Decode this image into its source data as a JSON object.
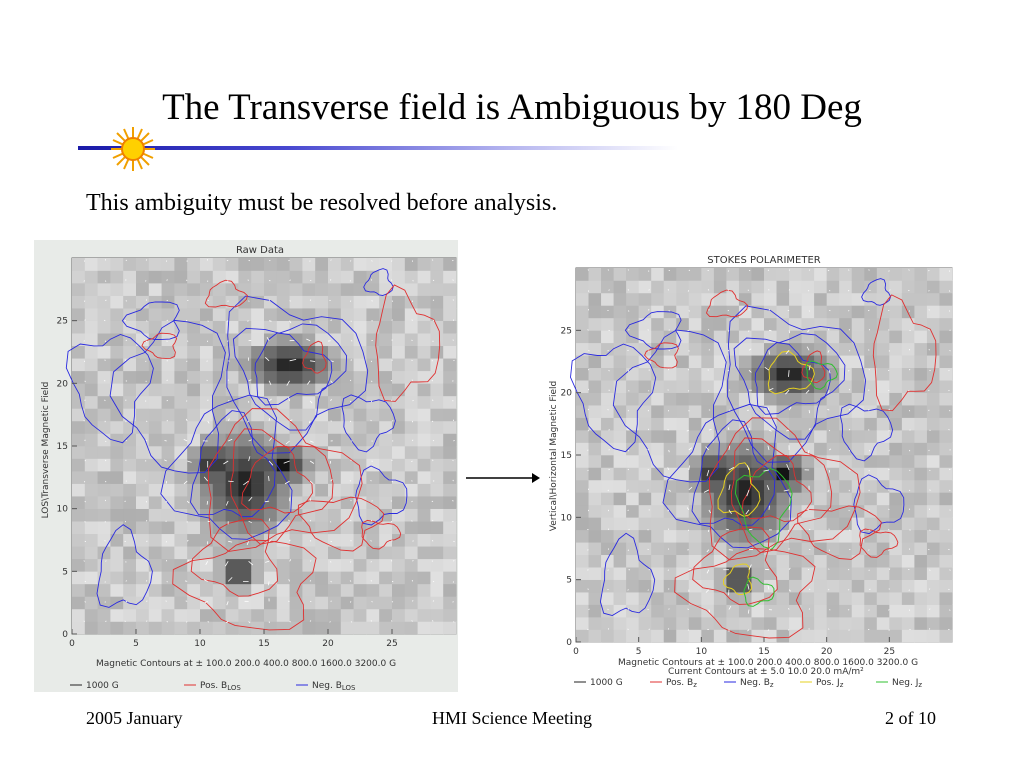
{
  "slide": {
    "title": "The Transverse field is Ambiguous by 180 Deg",
    "subtitle": "This ambiguity must be resolved before analysis.",
    "footer_left": "2005 January",
    "footer_center": "HMI Science Meeting",
    "footer_right": "2 of 10",
    "decoration_icon": "sun-icon"
  },
  "left_plot": {
    "title": "Raw Data",
    "ylabel": "LOS\\Transverse Magnetic Field",
    "yticks": [
      "0",
      "5",
      "10",
      "15",
      "20",
      "25"
    ],
    "xticks": [
      "0",
      "5",
      "10",
      "15",
      "20",
      "25"
    ],
    "contour_caption": "Magnetic Contours at ±   100.0 200.0 400.0 800.0 1600.0 3200.0 G",
    "legend": [
      "1000 G",
      "Pos. B",
      "Neg. B"
    ],
    "legend_sub": "LOS",
    "colors": {
      "pos": "#e03030",
      "neg": "#2a2ae0",
      "strong": "#222222"
    }
  },
  "right_plot": {
    "title": "STOKES POLARIMETER",
    "ylabel": "Vertical\\Horizontal Magnetic Field",
    "yticks": [
      "0",
      "5",
      "10",
      "15",
      "20",
      "25"
    ],
    "xticks": [
      "0",
      "5",
      "10",
      "15",
      "20",
      "25"
    ],
    "contour_caption": "Magnetic Contours at ±   100.0 200.0 400.0 800.0 1600.0 3200.0 G",
    "current_caption": "Current Contours at ± 5.0 10.0 20.0 mA/m²",
    "legend": [
      "1000 G",
      "Pos. B",
      "Neg. B",
      "Pos. J",
      "Neg. J"
    ],
    "legend_subs": [
      "z",
      "z",
      "z",
      "z"
    ],
    "colors": {
      "pos": "#e03030",
      "neg": "#2a2ae0",
      "strong": "#222222",
      "posj": "#e6d020",
      "negj": "#30c030"
    }
  }
}
